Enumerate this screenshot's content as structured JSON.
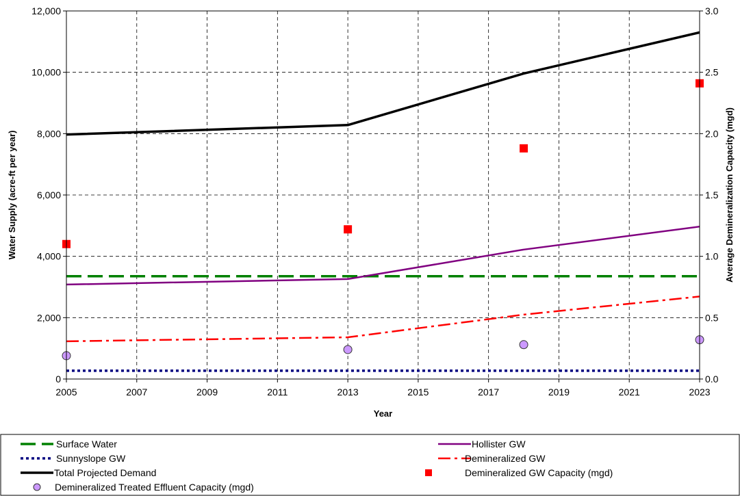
{
  "chart_data": {
    "type": "line",
    "xlabel": "Year",
    "ylabel": "Water Supply (acre-ft per year)",
    "y2label": "Average Demineralization Capacity (mgd)",
    "xlim": [
      2005,
      2023
    ],
    "ylim": [
      0,
      12000
    ],
    "y2lim": [
      0,
      3.0
    ],
    "x_ticks": [
      2005,
      2007,
      2009,
      2011,
      2013,
      2015,
      2017,
      2019,
      2021,
      2023
    ],
    "y_ticks": [
      0,
      2000,
      4000,
      6000,
      8000,
      10000,
      12000
    ],
    "y_tick_labels": [
      "0",
      "2,000",
      "4,000",
      "6,000",
      "8,000",
      "10,000",
      "12,000"
    ],
    "y2_ticks": [
      0,
      0.5,
      1.0,
      1.5,
      2.0,
      2.5,
      3.0
    ],
    "y2_tick_labels": [
      "0.0",
      "0.5",
      "1.0",
      "1.5",
      "2.0",
      "2.5",
      "3.0"
    ],
    "grid": true,
    "legend_position": "bottom",
    "series": [
      {
        "name": "Surface Water",
        "axis": "left",
        "style": "long-dash",
        "color": "#008000",
        "x": [
          2005,
          2013,
          2018,
          2023
        ],
        "y": [
          3350,
          3350,
          3350,
          3350
        ]
      },
      {
        "name": "Hollister GW",
        "axis": "left",
        "style": "solid",
        "color": "#800080",
        "x": [
          2005,
          2013,
          2018,
          2023
        ],
        "y": [
          3080,
          3260,
          4220,
          4970
        ]
      },
      {
        "name": "Sunnyslope GW",
        "axis": "left",
        "style": "dotted",
        "color": "#000080",
        "x": [
          2005,
          2013,
          2018,
          2023
        ],
        "y": [
          270,
          270,
          270,
          270
        ]
      },
      {
        "name": "Demineralized GW",
        "axis": "left",
        "style": "dash-dot",
        "color": "#ff0000",
        "x": [
          2005,
          2013,
          2018,
          2023
        ],
        "y": [
          1230,
          1360,
          2100,
          2690
        ]
      },
      {
        "name": "Total Projected Demand",
        "axis": "left",
        "style": "solid-thick",
        "color": "#000000",
        "x": [
          2005,
          2013,
          2018,
          2023
        ],
        "y": [
          7970,
          8280,
          9960,
          11300
        ]
      },
      {
        "name": "Demineralized GW Capacity (mgd)",
        "axis": "right",
        "style": "square-marker",
        "color": "#ff0000",
        "x": [
          2005,
          2013,
          2018,
          2023
        ],
        "y": [
          1.1,
          1.22,
          1.88,
          2.41
        ]
      },
      {
        "name": "Demineralized Treated Effluent Capacity (mgd)",
        "axis": "right",
        "style": "circle-marker",
        "color": "#cc99ff",
        "x": [
          2005,
          2013,
          2018,
          2023
        ],
        "y": [
          0.19,
          0.24,
          0.28,
          0.32
        ]
      }
    ]
  }
}
